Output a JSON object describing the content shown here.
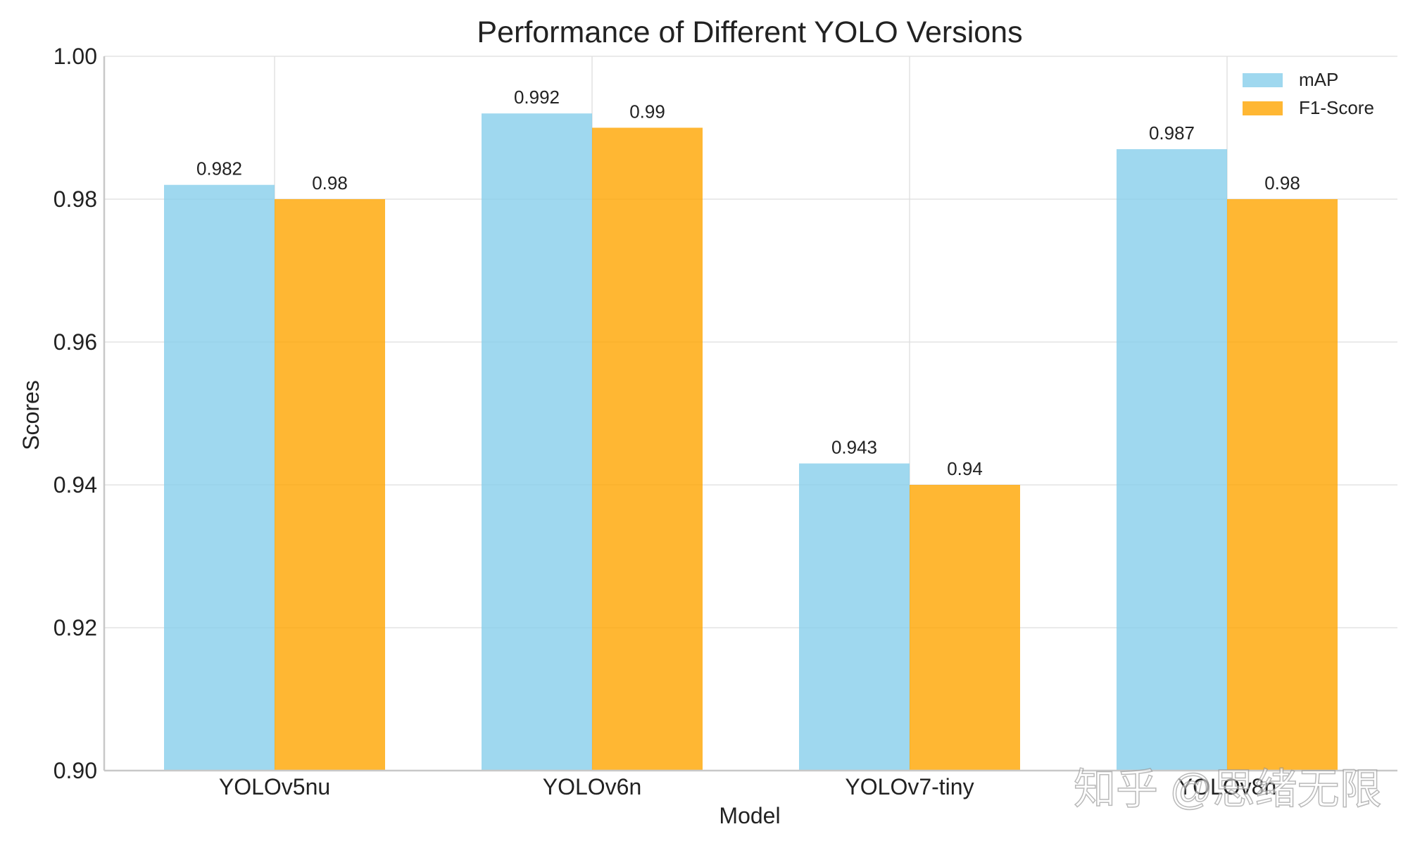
{
  "chart_data": {
    "type": "bar",
    "title": "Performance of Different YOLO Versions",
    "xlabel": "Model",
    "ylabel": "Scores",
    "categories": [
      "YOLOv5nu",
      "YOLOv6n",
      "YOLOv7-tiny",
      "YOLOv8n"
    ],
    "series": [
      {
        "name": "mAP",
        "values": [
          0.982,
          0.992,
          0.943,
          0.987
        ],
        "labels": [
          "0.982",
          "0.992",
          "0.943",
          "0.987"
        ],
        "color": "#87ceeb"
      },
      {
        "name": "F1-Score",
        "values": [
          0.98,
          0.99,
          0.94,
          0.98
        ],
        "labels": [
          "0.98",
          "0.99",
          "0.94",
          "0.98"
        ],
        "color": "#ffa500"
      }
    ],
    "ylim": [
      0.9,
      1.0
    ],
    "yticks": [
      0.9,
      0.92,
      0.94,
      0.96,
      0.98,
      1.0
    ],
    "ytick_labels": [
      "0.90",
      "0.92",
      "0.94",
      "0.96",
      "0.98",
      "1.00"
    ],
    "grid": true,
    "legend_position": "top-right"
  },
  "watermark": {
    "text": "知乎 @思绪无限"
  },
  "colors": {
    "grid": "#dddddd",
    "axis": "#c8c8c8",
    "text": "#222222"
  }
}
